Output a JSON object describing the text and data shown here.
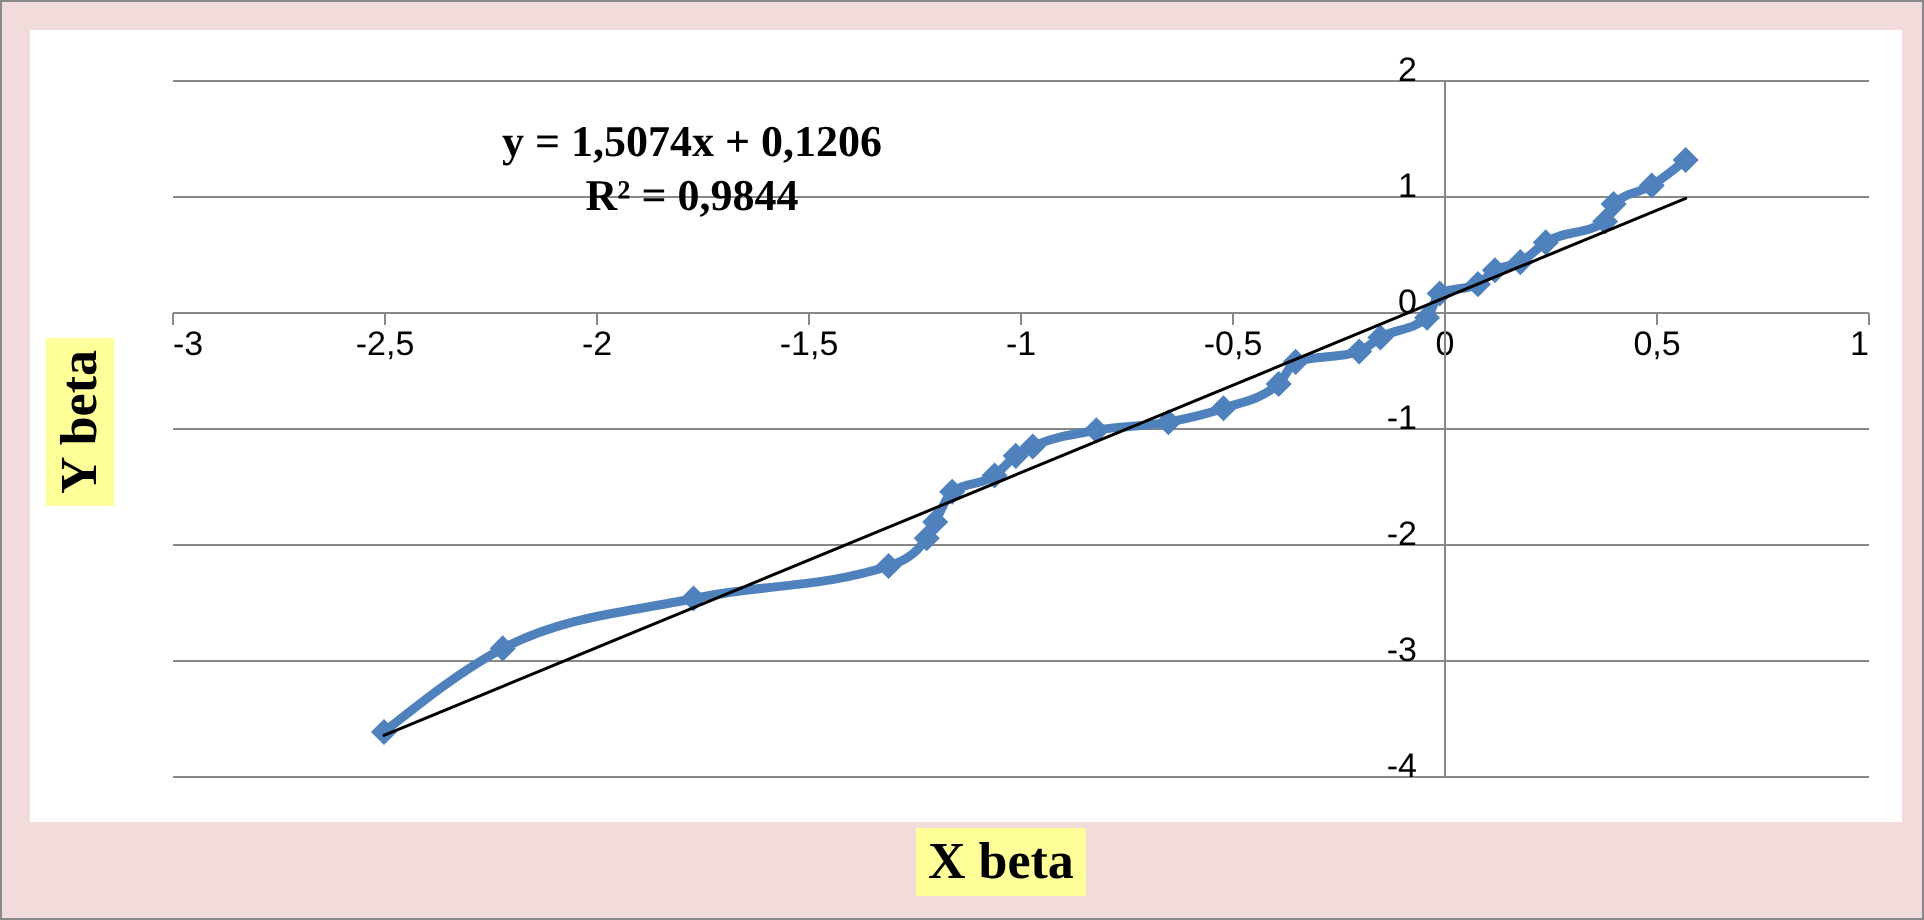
{
  "chart_data": {
    "type": "line",
    "xlabel": "X beta",
    "ylabel": "Y beta",
    "annotations": [
      "y = 1,5074x + 0,1206",
      "R² = 0,9844"
    ],
    "series": [
      {
        "color": "#4f81bd",
        "marker": "diamond",
        "x": [
          -2.5,
          -2.22,
          -1.77,
          -1.31,
          -1.22,
          -1.2,
          -1.16,
          -1.06,
          -1.01,
          -0.97,
          -0.82,
          -0.65,
          -0.52,
          -0.39,
          -0.35,
          -0.2,
          -0.15,
          -0.04,
          -0.01,
          0.08,
          0.12,
          0.18,
          0.24,
          0.38,
          0.4,
          0.49,
          0.57
        ],
        "values": [
          -3.62,
          -2.9,
          -2.47,
          -2.19,
          -1.95,
          -1.81,
          -1.55,
          -1.41,
          -1.24,
          -1.16,
          -1.02,
          -0.95,
          -0.83,
          -0.62,
          -0.43,
          -0.34,
          -0.22,
          -0.05,
          0.16,
          0.24,
          0.36,
          0.43,
          0.6,
          0.78,
          0.93,
          1.09,
          1.31
        ]
      },
      {
        "type": "line",
        "color": "#000000",
        "marker": "none",
        "x": [
          -2.5,
          0.57
        ],
        "values": [
          -3.65,
          0.98
        ]
      }
    ],
    "xlim": [
      -3,
      1
    ],
    "xticks": [
      -3,
      {
        "value": -2.5,
        "label": "-2,5"
      },
      -2,
      {
        "value": -1.5,
        "label": "-1,5"
      },
      -1,
      {
        "value": -0.5,
        "label": "-0,5"
      },
      0,
      {
        "value": 0.5,
        "label": "0,5"
      },
      1
    ],
    "ylim": [
      -4,
      2
    ],
    "yticks": [
      -4,
      -3,
      -2,
      -1,
      0,
      1,
      2
    ],
    "grid": "y"
  }
}
